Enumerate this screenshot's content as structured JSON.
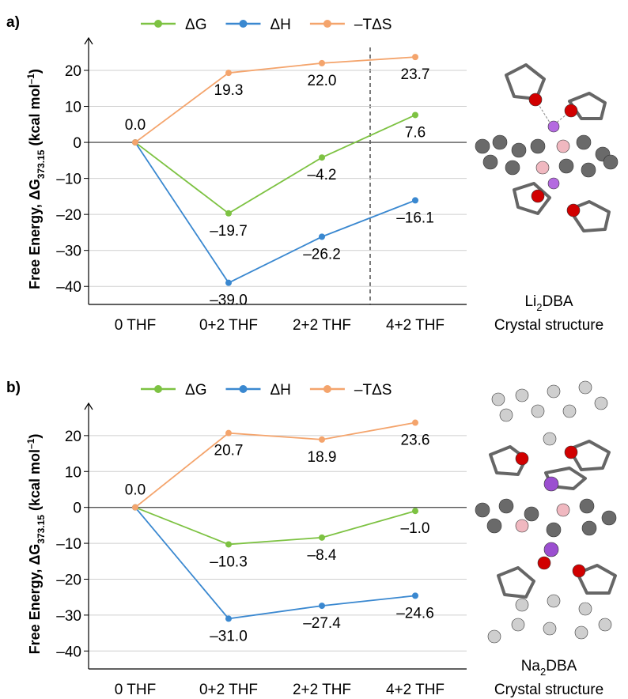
{
  "chart_data": [
    {
      "type": "line",
      "panel_label": "a)",
      "y_label": {
        "main": "Free Energy, ΔG",
        "sub": "373.15",
        "unit": " (kcal mol",
        "sup": "–1",
        "close": ")"
      },
      "caption": {
        "name": "Li",
        "sub": "2",
        "rest": "DBA",
        "line2": "Crystal structure"
      },
      "categories": [
        "0 THF",
        "0+2 THF",
        "2+2 THF",
        "4+2 THF"
      ],
      "series": [
        {
          "name": "ΔG",
          "color": "#7dc242",
          "values": [
            0,
            -19.7,
            -4.2,
            7.6
          ],
          "value_labels": [
            "0.0",
            "–19.7",
            "–4.2",
            "7.6"
          ]
        },
        {
          "name": "ΔH",
          "color": "#3a88d0",
          "values": [
            0,
            -39.0,
            -26.2,
            -16.1
          ],
          "value_labels": [
            null,
            "–39.0",
            "–26.2",
            "–16.1"
          ]
        },
        {
          "name": "–TΔS",
          "color": "#f4a46c",
          "values": [
            0,
            19.3,
            22.0,
            23.7
          ],
          "value_labels": [
            null,
            "19.3",
            "22.0",
            "23.7"
          ]
        }
      ],
      "ylim": [
        -45,
        29
      ],
      "yticks": [
        20,
        10,
        0,
        {
          "value": -10,
          "label": "–10"
        },
        {
          "value": -20,
          "label": "–20"
        },
        {
          "value": -30,
          "label": "–30"
        },
        {
          "value": -40,
          "label": "–40"
        }
      ],
      "grid": true
    },
    {
      "type": "line",
      "panel_label": "b)",
      "y_label": {
        "main": "Free Energy, ΔG",
        "sub": "373.15",
        "unit": " (kcal mol",
        "sup": "–1",
        "close": ")"
      },
      "caption": {
        "name": "Na",
        "sub": "2",
        "rest": "DBA",
        "line2": "Crystal structure"
      },
      "categories": [
        "0 THF",
        "0+2 THF",
        "2+2 THF",
        "4+2 THF"
      ],
      "series": [
        {
          "name": "ΔG",
          "color": "#7dc242",
          "values": [
            0,
            -10.3,
            -8.4,
            -1.0
          ],
          "value_labels": [
            "0.0",
            "–10.3",
            "–8.4",
            "–1.0"
          ]
        },
        {
          "name": "ΔH",
          "color": "#3a88d0",
          "values": [
            0,
            -31.0,
            -27.4,
            -24.6
          ],
          "value_labels": [
            null,
            "–31.0",
            "–27.4",
            "–24.6"
          ]
        },
        {
          "name": "–TΔS",
          "color": "#f4a46c",
          "values": [
            0,
            20.7,
            18.9,
            23.6
          ],
          "value_labels": [
            null,
            "20.7",
            "18.9",
            "23.6"
          ]
        }
      ],
      "ylim": [
        -45,
        29
      ],
      "yticks": [
        20,
        10,
        0,
        {
          "value": -10,
          "label": "–10"
        },
        {
          "value": -20,
          "label": "–20"
        },
        {
          "value": -30,
          "label": "–30"
        },
        {
          "value": -40,
          "label": "–40"
        }
      ],
      "grid": true
    }
  ]
}
